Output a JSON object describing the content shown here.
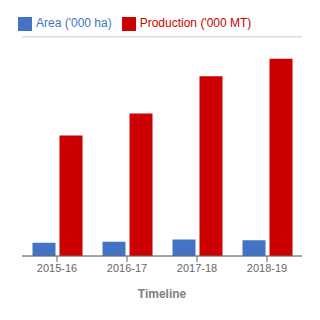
{
  "chart_data": {
    "type": "bar",
    "xlabel": "Timeline",
    "categories": [
      "2015-16",
      "2016-17",
      "2017-18",
      "2018-19"
    ],
    "series": [
      {
        "name": "Area ('000 ha)",
        "color": "#4472C4",
        "values": [
          6,
          6.5,
          7.5,
          7.2
        ]
      },
      {
        "name": "Production ('000 MT)",
        "color": "#CC0000",
        "values": [
          55,
          65,
          82,
          90
        ]
      }
    ],
    "ylim": [
      0,
      100
    ],
    "yticks": [
      0,
      5,
      10,
      15,
      20,
      25,
      30,
      35,
      40,
      45,
      50,
      55,
      60,
      65,
      70,
      75,
      80,
      85,
      90,
      95,
      100
    ],
    "grid": true,
    "legend": "upper left",
    "tick_labels": "x"
  }
}
